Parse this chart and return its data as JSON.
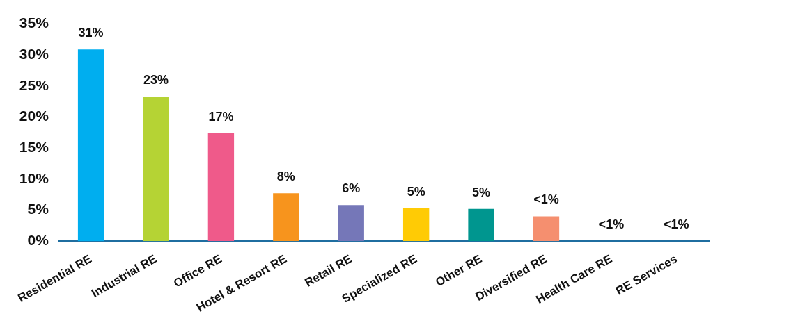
{
  "chart_data": {
    "type": "bar",
    "categories": [
      "Residential RE",
      "Industrial RE",
      "Office RE",
      "Hotel & Resort RE",
      "Retail RE",
      "Specialized RE",
      "Other RE",
      "Diversified RE",
      "Health Care RE",
      "RE Services"
    ],
    "values": [
      30.9,
      23.3,
      17.4,
      7.7,
      5.8,
      5.3,
      5.2,
      4.0,
      0,
      0
    ],
    "colors": [
      "#00aeef",
      "#b5d334",
      "#ef5a8a",
      "#f7941d",
      "#7577b8",
      "#ffcb05",
      "#00968f",
      "#f58f6f",
      "#888888",
      "#888888"
    ],
    "value_labels": [
      "31%",
      "23%",
      "17%",
      "8%",
      "6%",
      "5%",
      "5%",
      "<1%",
      "<1%",
      "<1%"
    ],
    "ylim": [
      0,
      35
    ],
    "yticks": [
      {
        "value": 0,
        "label": "0%"
      },
      {
        "value": 5,
        "label": "5%"
      },
      {
        "value": 10,
        "label": "10%"
      },
      {
        "value": 15,
        "label": "15%"
      },
      {
        "value": 20,
        "label": "20%"
      },
      {
        "value": 25,
        "label": "25%"
      },
      {
        "value": 30,
        "label": "30%"
      },
      {
        "value": 35,
        "label": "35%"
      }
    ],
    "grid": false,
    "legend": false
  }
}
